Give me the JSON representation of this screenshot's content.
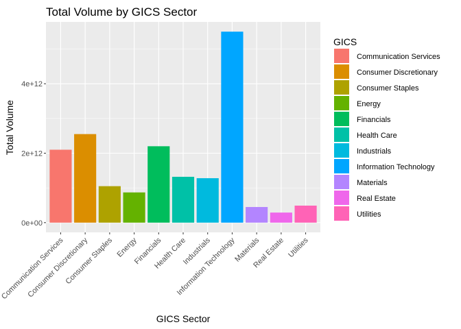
{
  "chart_data": {
    "type": "bar",
    "title": "Total Volume by GICS Sector",
    "xlabel": "GICS Sector",
    "ylabel": "Total Volume",
    "categories": [
      "Communication Services",
      "Consumer Discretionary",
      "Consumer Staples",
      "Energy",
      "Financials",
      "Health Care",
      "Industrials",
      "Information Technology",
      "Materials",
      "Real Estate",
      "Utilities"
    ],
    "values": [
      2100000000000.0,
      2550000000000.0,
      1050000000000.0,
      870000000000.0,
      2200000000000.0,
      1320000000000.0,
      1280000000000.0,
      5500000000000.0,
      450000000000.0,
      290000000000.0,
      490000000000.0
    ],
    "colors": [
      "#F8766D",
      "#DB8E00",
      "#AEA200",
      "#64B200",
      "#00BD5C",
      "#00C1A7",
      "#00BADE",
      "#00A6FF",
      "#B385FF",
      "#EF67EB",
      "#FF63B6"
    ],
    "ylim": [
      -280000000000.0,
      5780000000000.0
    ],
    "yticks": [
      0,
      2000000000000.0,
      4000000000000.0
    ],
    "ytick_labels": [
      "0e+00",
      "2e+12",
      "4e+12"
    ],
    "legend": {
      "title": "GICS",
      "position": "right"
    },
    "grid": true,
    "panel_background": "#EBEBEB",
    "grid_color": "#FFFFFF"
  }
}
